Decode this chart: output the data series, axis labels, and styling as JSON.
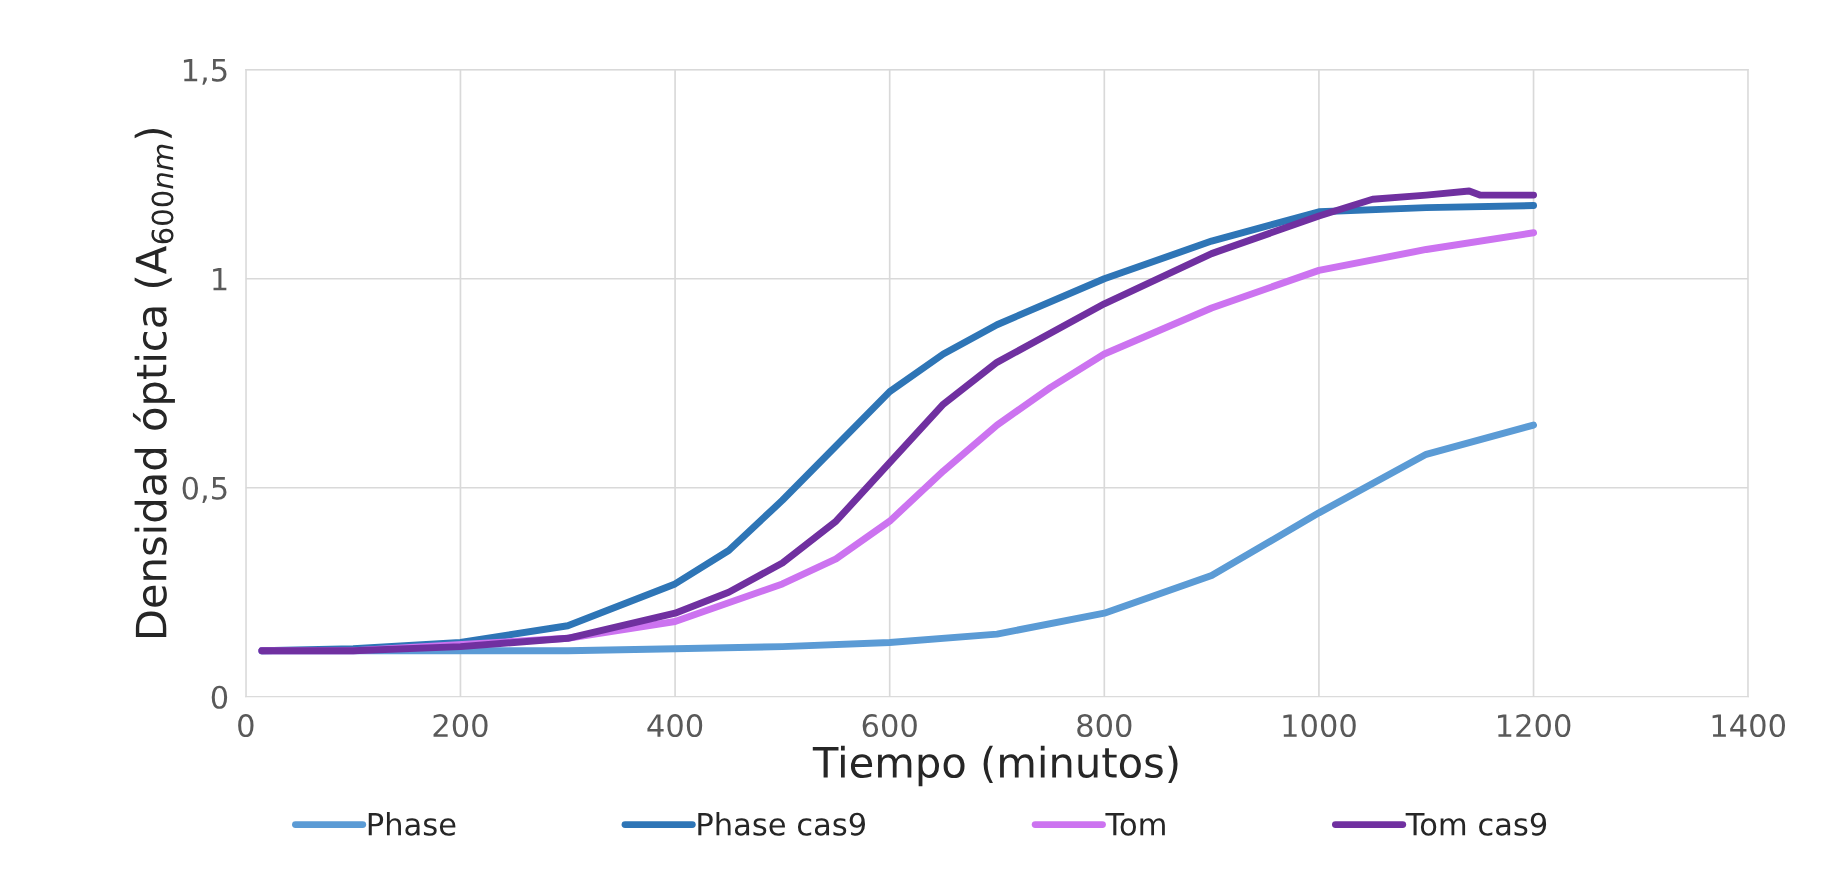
{
  "chart_data": {
    "type": "line",
    "xlabel": "Tiempo (minutos)",
    "ylabel": "Densidad óptica (A$_{600nm}$)",
    "xlim": [
      0,
      1400
    ],
    "xticks": [
      0,
      200,
      400,
      600,
      800,
      1000,
      1200,
      1400
    ],
    "ylim": [
      0,
      1.5
    ],
    "yticks": [
      {
        "value": 0,
        "label": "0"
      },
      {
        "value": 0.5,
        "label": "0,5"
      },
      {
        "value": 1,
        "label": "1"
      },
      {
        "value": 1.5,
        "label": "1,5"
      }
    ],
    "grid": true,
    "legend": "bottom",
    "marker": "none",
    "line_style": "solid",
    "series": [
      {
        "name": "Phase",
        "color": "#5b9bd5",
        "x": [
          15,
          100,
          200,
          300,
          400,
          500,
          600,
          700,
          800,
          900,
          1000,
          1100,
          1200
        ],
        "values": [
          0.11,
          0.11,
          0.11,
          0.11,
          0.115,
          0.12,
          0.13,
          0.15,
          0.2,
          0.29,
          0.44,
          0.58,
          0.65
        ]
      },
      {
        "name": "Phase cas9",
        "color": "#2e75b6",
        "x": [
          15,
          100,
          200,
          300,
          400,
          450,
          500,
          550,
          600,
          650,
          700,
          800,
          900,
          1000,
          1100,
          1200
        ],
        "values": [
          0.11,
          0.115,
          0.13,
          0.17,
          0.27,
          0.35,
          0.47,
          0.6,
          0.73,
          0.82,
          0.89,
          1.0,
          1.09,
          1.16,
          1.17,
          1.175
        ]
      },
      {
        "name": "Tom",
        "color": "#cc73f0",
        "x": [
          15,
          100,
          300,
          400,
          500,
          550,
          600,
          650,
          700,
          750,
          800,
          900,
          1000,
          1100,
          1200
        ],
        "values": [
          0.11,
          0.11,
          0.14,
          0.18,
          0.27,
          0.33,
          0.42,
          0.54,
          0.65,
          0.74,
          0.82,
          0.93,
          1.02,
          1.07,
          1.11
        ]
      },
      {
        "name": "Tom cas9",
        "color": "#7030a0",
        "x": [
          15,
          100,
          200,
          300,
          400,
          450,
          500,
          550,
          600,
          650,
          700,
          800,
          900,
          1000,
          1050,
          1100,
          1140,
          1150,
          1200
        ],
        "values": [
          0.11,
          0.11,
          0.12,
          0.14,
          0.2,
          0.25,
          0.32,
          0.42,
          0.56,
          0.7,
          0.8,
          0.94,
          1.06,
          1.15,
          1.19,
          1.2,
          1.21,
          1.2,
          1.2
        ]
      }
    ]
  }
}
